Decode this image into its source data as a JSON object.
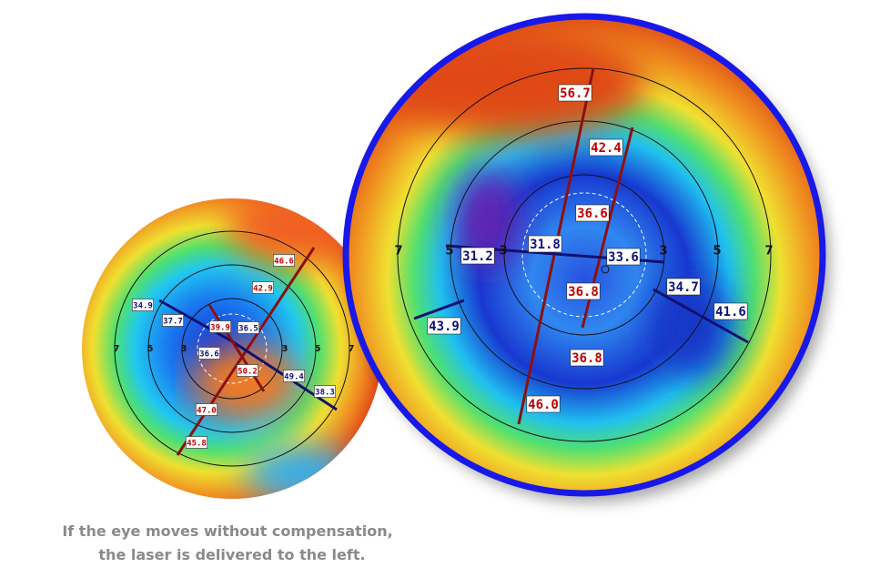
{
  "caption": [
    "If the eye moves without compensation,",
    "the laser is delivered to the left."
  ],
  "maps": [
    {
      "ring_labels": [
        "7",
        "5",
        "3",
        "3",
        "5",
        "7"
      ],
      "labels": [
        "34.9",
        "37.7",
        "39.9",
        "36.5",
        "36.6",
        "46.6",
        "42.9",
        "50.2",
        "49.4",
        "38.3",
        "47.0",
        "45.8"
      ]
    },
    {
      "ring_labels": [
        "7",
        "5",
        "3",
        "3",
        "5",
        "7"
      ],
      "labels": [
        "56.7",
        "42.4",
        "36.6",
        "31.2",
        "31.8",
        "33.6",
        "36.8",
        "34.7",
        "41.6",
        "43.9",
        "36.8",
        "46.0"
      ]
    }
  ]
}
